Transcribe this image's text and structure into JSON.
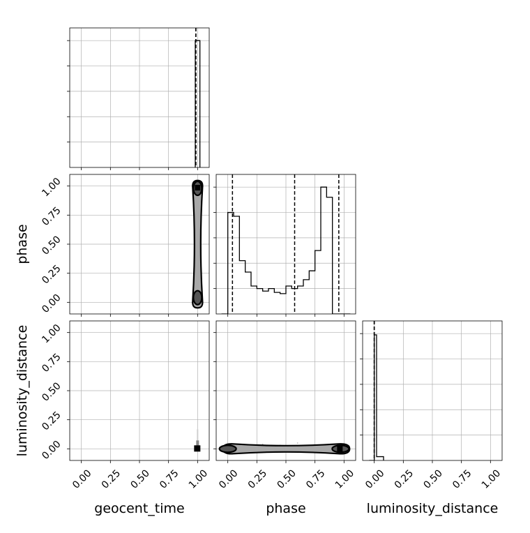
{
  "chart_data": {
    "type": "corner",
    "parameters": [
      "geocent_time",
      "phase",
      "luminosity_distance"
    ],
    "tick_labels": [
      "0.00",
      "0.25",
      "0.50",
      "0.75",
      "1.00"
    ],
    "axis_range": [
      -0.1,
      1.1
    ],
    "grid": true,
    "colors": {
      "line": "#000000",
      "grid": "#b0b0b0",
      "fill_dark": "#555555",
      "fill_light": "#a8a8a8"
    },
    "diagonal": [
      {
        "parameter": "geocent_time",
        "bin_edges": [
          0.98,
          1.0,
          1.02
        ],
        "counts": [
          1.0,
          1.0
        ],
        "quantiles": [
          0.985,
          0.985,
          0.985
        ],
        "ylim": [
          0,
          1.1
        ]
      },
      {
        "parameter": "phase",
        "bin_edges": [
          -0.05,
          0.0,
          0.05,
          0.1,
          0.15,
          0.2,
          0.25,
          0.3,
          0.35,
          0.4,
          0.45,
          0.5,
          0.55,
          0.6,
          0.65,
          0.7,
          0.75,
          0.8,
          0.85,
          0.9,
          0.95,
          1.0,
          1.05
        ],
        "counts": [
          0.0,
          0.8,
          0.77,
          0.42,
          0.33,
          0.22,
          0.2,
          0.18,
          0.2,
          0.17,
          0.16,
          0.22,
          0.2,
          0.22,
          0.27,
          0.34,
          0.5,
          1.0,
          0.92,
          0.0,
          0.0,
          0.0
        ],
        "quantiles": [
          0.04,
          0.575,
          0.955
        ],
        "ylim": [
          0,
          1.1
        ]
      },
      {
        "parameter": "luminosity_distance",
        "bin_edges": [
          -0.04,
          0.0,
          0.02,
          0.08
        ],
        "counts": [
          0.0,
          0.99,
          0.03
        ],
        "quantiles": [
          0.0,
          0.0,
          0.0
        ],
        "ylim": [
          0,
          1.1
        ]
      }
    ],
    "pairs": [
      {
        "x": "geocent_time",
        "y": "phase",
        "modes": [
          {
            "x": 1.0,
            "y": 0.98
          },
          {
            "x": 1.0,
            "y": 0.04
          }
        ],
        "ridge": {
          "x": 1.0,
          "y_range": [
            0.0,
            1.0
          ]
        }
      },
      {
        "x": "geocent_time",
        "y": "luminosity_distance",
        "modes": [
          {
            "x": 1.0,
            "y": 0.0
          }
        ]
      },
      {
        "x": "phase",
        "y": "luminosity_distance",
        "modes": [
          {
            "x": 0.0,
            "y": 0.0
          },
          {
            "x": 0.97,
            "y": 0.0
          }
        ],
        "ridge": {
          "y": 0.0,
          "x_range": [
            0.0,
            1.0
          ]
        }
      }
    ]
  }
}
